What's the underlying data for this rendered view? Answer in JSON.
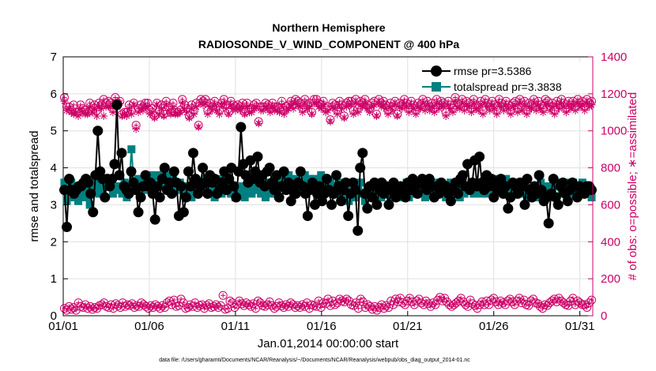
{
  "chart_data": {
    "type": "line",
    "title": "Northern Hemisphere",
    "subtitle": "RADIOSONDE_V_WIND_COMPONENT @ 400 hPa",
    "xlabel": "Jan.01,2014 00:00:00 start",
    "ylabel": "rmse and totalspread",
    "y2label": "# of obs: o=possible; ∗=assimilated",
    "footnote": "data file: /Users/gharamti/Documents/NCAR/Reanalysis/~/Documents/NCAR/Reanalysis/webpub/obs_diag_output_2014-01.nc",
    "xlim": [
      0,
      30.75
    ],
    "ylim": [
      0,
      7
    ],
    "y2lim": [
      0,
      1400
    ],
    "x_ticks": [
      0,
      5,
      10,
      15,
      20,
      25,
      30
    ],
    "x_tick_labels": [
      "01/01",
      "01/06",
      "01/11",
      "01/16",
      "01/21",
      "01/26",
      "01/31"
    ],
    "y_ticks": [
      "0",
      "1",
      "2",
      "3",
      "4",
      "5",
      "6",
      "7"
    ],
    "y2_ticks": [
      "0",
      "200",
      "400",
      "600",
      "800",
      "1000",
      "1200",
      "1400"
    ],
    "legend_position": "top-right",
    "colors": {
      "rmse": "#000000",
      "spread": "#008080",
      "obs": "#cc0066",
      "grid": "#e0e0e0"
    },
    "series": [
      {
        "name": "rmse",
        "legend": "rmse pr=3.5386",
        "axis": "left",
        "marker": "circle",
        "values": [
          3.4,
          2.4,
          3.7,
          3.4,
          3.3,
          3.4,
          3.5,
          3.5,
          3.6,
          3.7,
          3.6,
          3.3,
          2.8,
          3.8,
          5.0,
          3.9,
          3.7,
          3.2,
          3.7,
          3.5,
          3.7,
          4.1,
          5.7,
          3.8,
          4.4,
          3.5,
          3.4,
          3.3,
          3.9,
          3.6,
          3.4,
          2.8,
          3.2,
          3.5,
          3.8,
          3.5,
          3.6,
          3.3,
          2.6,
          3.5,
          3.2,
          3.7,
          4.0,
          3.4,
          3.6,
          3.3,
          3.9,
          3.6,
          2.7,
          3.5,
          2.8,
          3.2,
          3.9,
          3.5,
          4.4,
          3.7,
          3.3,
          3.5,
          4.0,
          3.6,
          3.3,
          3.8,
          3.6,
          3.7,
          3.3,
          3.4,
          3.6,
          3.9,
          3.4,
          3.7,
          4.0,
          3.5,
          3.2,
          3.9,
          5.1,
          4.1,
          3.8,
          3.6,
          4.2,
          3.7,
          3.9,
          4.3,
          3.6,
          3.8,
          3.5,
          3.9,
          4.0,
          3.6,
          3.4,
          3.8,
          3.2,
          3.5,
          3.9,
          3.4,
          3.6,
          3.1,
          3.4,
          3.3,
          3.6,
          3.9,
          3.5,
          3.3,
          2.7,
          3.4,
          3.6,
          3.0,
          3.3,
          3.5,
          3.1,
          3.3,
          3.7,
          3.4,
          3.0,
          3.3,
          3.8,
          3.5,
          3.1,
          3.4,
          3.6,
          2.7,
          3.3,
          3.6,
          3.4,
          2.3,
          4.0,
          4.4,
          3.3,
          2.9,
          3.5,
          3.2,
          3.6,
          3.0,
          3.4,
          3.6,
          3.3,
          3.5,
          3.0,
          3.4,
          3.6,
          3.2,
          3.4,
          3.5,
          3.3,
          3.2,
          3.6,
          3.4,
          3.7,
          3.5,
          3.3,
          3.6,
          3.7,
          3.5,
          3.4,
          3.7,
          3.5,
          3.2,
          3.5,
          3.3,
          3.6,
          3.4,
          3.5,
          3.3,
          3.1,
          3.4,
          3.6,
          3.3,
          3.7,
          3.8,
          3.5,
          4.1,
          3.4,
          3.6,
          4.2,
          3.5,
          4.3,
          3.6,
          3.4,
          3.8,
          3.5,
          3.7,
          3.2,
          3.6,
          3.4,
          3.7,
          3.3,
          3.5,
          2.9,
          3.2,
          3.6,
          3.5,
          3.3,
          3.6,
          3.5,
          3.0,
          3.7,
          3.4,
          3.2,
          3.5,
          3.3,
          3.8,
          3.4,
          3.1,
          3.2,
          2.5,
          3.3,
          3.7,
          3.2,
          3.0,
          3.5,
          3.6,
          3.3,
          3.1,
          3.4,
          3.6,
          3.5,
          3.2,
          3.5,
          3.4,
          3.3,
          3.5,
          3.5,
          3.4
        ]
      },
      {
        "name": "totalspread",
        "legend": "totalspread pr=3.3838",
        "axis": "left",
        "marker": "square",
        "values": [
          3.6,
          3.1,
          3.6,
          3.6,
          3.2,
          3.4,
          3.1,
          3.3,
          3.4,
          3.2,
          3.4,
          3.0,
          3.5,
          3.4,
          3.6,
          3.3,
          3.4,
          3.6,
          3.5,
          3.5,
          3.6,
          3.3,
          3.5,
          3.4,
          3.5,
          3.3,
          3.6,
          3.2,
          3.5,
          4.5,
          3.6,
          3.4,
          3.7,
          3.5,
          3.6,
          3.4,
          3.7,
          3.8,
          3.6,
          3.4,
          3.8,
          3.5,
          3.7,
          3.9,
          3.6,
          3.8,
          3.5,
          3.7,
          3.6,
          3.4,
          3.6,
          3.5,
          3.3,
          3.4,
          3.5,
          3.2,
          3.4,
          3.3,
          3.5,
          3.4,
          3.6,
          3.7,
          3.5,
          3.4,
          3.6,
          3.2,
          3.5,
          3.7,
          3.3,
          3.4,
          3.6,
          3.5,
          3.3,
          3.4,
          3.2,
          3.4,
          3.3,
          3.5,
          3.2,
          3.4,
          3.6,
          3.3,
          3.5,
          3.4,
          3.7,
          3.3,
          3.4,
          3.2,
          3.4,
          3.6,
          3.3,
          3.5,
          3.4,
          3.2,
          3.7,
          3.5,
          3.4,
          3.8,
          3.6,
          3.5,
          3.7,
          3.4,
          3.6,
          3.5,
          3.8,
          3.6,
          3.7,
          3.4,
          3.7,
          3.5,
          3.6,
          3.8,
          3.5,
          3.7,
          3.4,
          3.6,
          3.3,
          3.5,
          3.4,
          3.6,
          3.3,
          3.2,
          3.4,
          3.1,
          3.3,
          3.5,
          3.2,
          3.4,
          3.6,
          3.3,
          3.1,
          3.4,
          3.2,
          3.5,
          3.3,
          3.4,
          3.6,
          3.2,
          3.4,
          3.3,
          3.5,
          3.2,
          3.4,
          3.2,
          3.5,
          3.3,
          3.2,
          3.4,
          3.6,
          3.2,
          3.5,
          3.3,
          3.4,
          3.3,
          3.5,
          3.4,
          3.2,
          3.4,
          3.5,
          3.3,
          3.4,
          3.6,
          3.3,
          3.5,
          3.4,
          3.2,
          3.4,
          3.6,
          3.3,
          3.5,
          3.4,
          3.2,
          3.4,
          3.3,
          3.5,
          3.4,
          3.6,
          3.3,
          3.5,
          3.4,
          3.3,
          3.4,
          3.6,
          3.3,
          3.5,
          3.4,
          3.7,
          3.5,
          3.6,
          3.4,
          3.5,
          3.7,
          3.4,
          3.5,
          3.6,
          3.4,
          3.5,
          3.3,
          3.4,
          3.5,
          3.3,
          3.2,
          3.4,
          3.3,
          3.5,
          3.2,
          3.6,
          3.4,
          3.3,
          3.5,
          3.2,
          3.4,
          3.5,
          3.6,
          3.5,
          3.4,
          3.3,
          3.6,
          3.5,
          3.3,
          3.6,
          3.5,
          3.4,
          3.5,
          3.6,
          3.3,
          3.5,
          3.4,
          3.2
        ]
      },
      {
        "name": "possible",
        "axis": "right",
        "marker": "circle-open",
        "values": [
          1180,
          1130,
          1130,
          1110,
          1140,
          1100,
          1100,
          1140,
          1120,
          1110,
          1100,
          1150,
          1110,
          1140,
          1110,
          1150,
          1140,
          1170,
          1150,
          1160,
          1150,
          1120,
          1180,
          1150,
          1160,
          1090,
          1100,
          1100,
          1140,
          1110,
          1150,
          1030,
          1120,
          1140,
          1130,
          1150,
          1150,
          1110,
          1120,
          1080,
          1150,
          1110,
          1140,
          1090,
          1160,
          1130,
          1100,
          1150,
          1100,
          1100,
          1110,
          1170,
          1140,
          1120,
          1080,
          1140,
          1110,
          1150,
          1030,
          1170,
          1160,
          1170,
          1110,
          1150,
          1130,
          1160,
          1130,
          1110,
          1150,
          1170,
          1140,
          1100,
          1160,
          1140,
          1130,
          1140,
          1130,
          1150,
          1100,
          1150,
          1120,
          1120,
          1140,
          1150,
          1050,
          1130,
          1130,
          1150,
          1140,
          1120,
          1150,
          1130,
          1130,
          1120,
          1160,
          1110,
          1130,
          1140,
          1160,
          1140,
          1170,
          1160,
          1150,
          1120,
          1170,
          1140,
          1150,
          1100,
          1170,
          1170,
          1150,
          1140,
          1160,
          1120,
          1130,
          1060,
          1150,
          1140,
          1110,
          1160,
          1140,
          1080,
          1150,
          1160,
          1160,
          1110,
          1170,
          1120,
          1160,
          1150,
          1170,
          1140,
          1120,
          1150,
          1160,
          1090,
          1170,
          1150,
          1160,
          1140,
          1110,
          1150,
          1130,
          1160,
          1090,
          1150,
          1140,
          1170,
          1150,
          1120,
          1160,
          1140,
          1110,
          1150,
          1140,
          1170,
          1130,
          1160,
          1130,
          1150,
          1120,
          1170,
          1140,
          1160,
          1150,
          1100,
          1160,
          1140,
          1120,
          1180,
          1150,
          1140,
          1170,
          1130,
          1160,
          1150,
          1120,
          1170,
          1140,
          1130,
          1160,
          1110,
          1170,
          1150,
          1130,
          1160,
          1140,
          1110,
          1170,
          1150,
          1130,
          1160,
          1140,
          1110,
          1150,
          1160,
          1120,
          1170,
          1130,
          1160,
          1110,
          1150,
          1140,
          1170,
          1130,
          1160,
          1140,
          1120,
          1170,
          1160,
          1130,
          1150,
          1110,
          1160,
          1140,
          1170,
          1150,
          1120,
          1160,
          1140,
          1160,
          1130,
          1170,
          1150,
          1160,
          1130,
          1170,
          1150,
          1160
        ]
      },
      {
        "name": "assimilated",
        "axis": "right",
        "marker": "asterisk",
        "values": [
          1160,
          1110,
          1120,
          1100,
          1090,
          1100,
          1080,
          1120,
          1100,
          1090,
          1090,
          1130,
          1100,
          1120,
          1080,
          1130,
          1120,
          1080,
          1130,
          1130,
          1130,
          1100,
          1160,
          1130,
          1150,
          1080,
          1090,
          1080,
          1120,
          1090,
          1140,
          1010,
          1100,
          1120,
          1110,
          1130,
          1130,
          1090,
          1100,
          1070,
          1140,
          1090,
          1120,
          1080,
          1140,
          1110,
          1090,
          1130,
          1090,
          1090,
          1100,
          1150,
          1120,
          1100,
          1070,
          1120,
          1090,
          1130,
          1020,
          1150,
          1140,
          1150,
          1090,
          1130,
          1110,
          1140,
          1110,
          1090,
          1140,
          1150,
          1120,
          1090,
          1140,
          1120,
          1110,
          1120,
          1110,
          1130,
          1090,
          1130,
          1100,
          1100,
          1120,
          1130,
          1040,
          1110,
          1110,
          1130,
          1120,
          1100,
          1130,
          1110,
          1110,
          1100,
          1140,
          1090,
          1110,
          1120,
          1140,
          1120,
          1150,
          1140,
          1130,
          1100,
          1150,
          1120,
          1130,
          1090,
          1150,
          1150,
          1130,
          1120,
          1140,
          1100,
          1110,
          1050,
          1130,
          1120,
          1090,
          1140,
          1120,
          1070,
          1130,
          1140,
          1140,
          1090,
          1150,
          1100,
          1140,
          1130,
          1150,
          1120,
          1100,
          1130,
          1140,
          1080,
          1150,
          1130,
          1140,
          1120,
          1090,
          1130,
          1110,
          1140,
          1080,
          1130,
          1120,
          1150,
          1130,
          1100,
          1140,
          1120,
          1090,
          1130,
          1120,
          1150,
          1110,
          1140,
          1110,
          1130,
          1100,
          1150,
          1120,
          1140,
          1130,
          1080,
          1140,
          1120,
          1100,
          1160,
          1130,
          1120,
          1150,
          1110,
          1140,
          1130,
          1100,
          1150,
          1120,
          1110,
          1140,
          1090,
          1150,
          1130,
          1110,
          1140,
          1120,
          1090,
          1150,
          1130,
          1110,
          1140,
          1120,
          1090,
          1130,
          1140,
          1100,
          1150,
          1110,
          1140,
          1090,
          1130,
          1120,
          1150,
          1110,
          1140,
          1120,
          1100,
          1150,
          1140,
          1110,
          1130,
          1090,
          1140,
          1120,
          1150,
          1130,
          1100,
          1140,
          1120,
          1140,
          1110,
          1150,
          1130,
          1140,
          1110,
          1150,
          1130,
          1140
        ]
      },
      {
        "name": "possible-low",
        "axis": "right",
        "marker": "circle-open",
        "values": [
          40,
          30,
          50,
          35,
          45,
          30,
          70,
          50,
          45,
          60,
          40,
          50,
          35,
          45,
          40,
          55,
          60,
          70,
          50,
          45,
          60,
          40,
          65,
          55,
          45,
          70,
          50,
          60,
          55,
          65,
          45,
          55,
          50,
          70,
          60,
          50,
          40,
          55,
          45,
          60,
          50,
          40,
          55,
          45,
          70,
          80,
          60,
          85,
          50,
          55,
          90,
          70,
          40,
          45,
          60,
          50,
          70,
          45,
          55,
          60,
          40,
          55,
          65,
          45,
          50,
          60,
          45,
          55,
          110,
          35,
          40,
          80,
          70,
          45,
          60,
          80,
          65,
          55,
          70,
          60,
          50,
          65,
          40,
          80,
          70,
          55,
          50,
          60,
          75,
          55,
          40,
          50,
          70,
          55,
          45,
          60,
          50,
          70,
          60,
          45,
          55,
          45,
          60,
          50,
          70,
          40,
          60,
          55,
          50,
          80,
          45,
          70,
          65,
          90,
          55,
          80,
          60,
          70,
          90,
          80,
          75,
          90,
          80,
          60,
          55,
          70,
          40,
          90,
          75,
          45,
          60,
          50,
          35,
          50,
          30,
          45,
          60,
          40,
          55,
          45,
          80,
          60,
          90,
          75,
          95,
          70,
          60,
          80,
          95,
          75,
          60,
          80,
          90,
          70,
          60,
          80,
          65,
          50,
          70,
          60,
          85,
          100,
          80,
          95,
          75,
          60,
          50,
          60,
          70,
          80,
          95,
          75,
          60,
          50,
          85,
          65,
          55,
          40,
          60,
          75,
          60,
          80,
          60,
          85,
          95,
          75,
          60,
          80,
          70,
          60,
          80,
          90,
          75,
          60,
          80,
          95,
          70,
          85,
          60,
          55,
          80,
          90,
          70,
          65,
          50,
          40,
          60,
          55,
          70,
          80,
          90,
          75,
          95,
          80,
          70,
          60,
          55,
          80,
          95,
          60,
          80,
          70,
          60,
          60,
          45,
          70,
          85
        ]
      }
    ]
  }
}
